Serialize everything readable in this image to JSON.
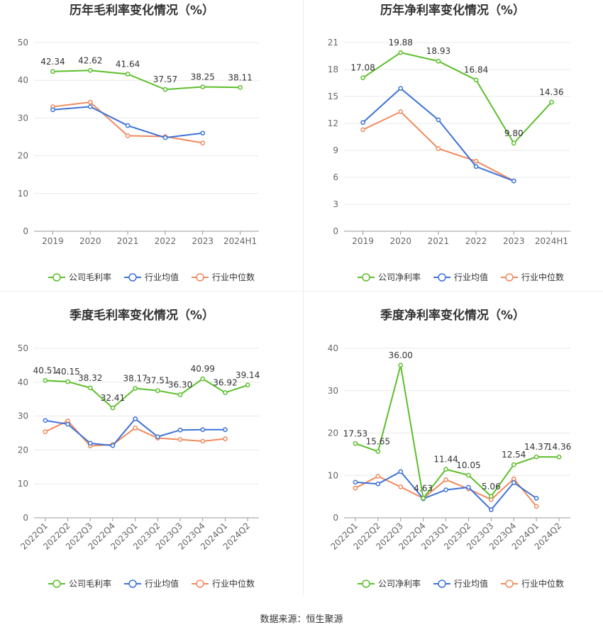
{
  "source_text": "数据来源：恒生聚源",
  "colors": {
    "company": "#5cbf2a",
    "avg": "#3d72d8",
    "median": "#f08a5d",
    "grid": "#e8e8e8",
    "axis": "#999999"
  },
  "chart_data": [
    {
      "type": "line",
      "title": "历年毛利率变化情况（%）",
      "categories": [
        "2019",
        "2020",
        "2021",
        "2022",
        "2023",
        "2024H1"
      ],
      "ylim": [
        0,
        50
      ],
      "yticks": [
        0,
        10,
        20,
        30,
        40,
        50
      ],
      "grid": true,
      "legend_position": "bottom",
      "x_label_rotate": false,
      "series": [
        {
          "name": "公司毛利率",
          "color": "#5cbf2a",
          "values": [
            42.34,
            42.62,
            41.64,
            37.57,
            38.25,
            38.11
          ],
          "labels": [
            "42.34",
            "42.62",
            "41.64",
            "37.57",
            "38.25",
            "38.11"
          ]
        },
        {
          "name": "行业均值",
          "color": "#3d72d8",
          "values": [
            32.2,
            33.0,
            28.0,
            24.8,
            26.0,
            null
          ]
        },
        {
          "name": "行业中位数",
          "color": "#f08a5d",
          "values": [
            33.0,
            34.2,
            25.3,
            25.1,
            23.4,
            null
          ]
        }
      ]
    },
    {
      "type": "line",
      "title": "历年净利率变化情况（%）",
      "categories": [
        "2019",
        "2020",
        "2021",
        "2022",
        "2023",
        "2024H1"
      ],
      "ylim": [
        0,
        21
      ],
      "yticks": [
        0,
        3,
        6,
        9,
        12,
        15,
        18,
        21
      ],
      "grid": true,
      "legend_position": "bottom",
      "x_label_rotate": false,
      "series": [
        {
          "name": "公司净利率",
          "color": "#5cbf2a",
          "values": [
            17.08,
            19.88,
            18.93,
            16.84,
            9.8,
            14.36
          ],
          "labels": [
            "17.08",
            "19.88",
            "18.93",
            "16.84",
            "9.80",
            "14.36"
          ]
        },
        {
          "name": "行业均值",
          "color": "#3d72d8",
          "values": [
            12.1,
            15.9,
            12.4,
            7.2,
            5.6,
            null
          ]
        },
        {
          "name": "行业中位数",
          "color": "#f08a5d",
          "values": [
            11.3,
            13.3,
            9.2,
            7.8,
            5.6,
            null
          ]
        }
      ]
    },
    {
      "type": "line",
      "title": "季度毛利率变化情况（%）",
      "categories": [
        "2022Q1",
        "2022Q2",
        "2022Q3",
        "2022Q4",
        "2023Q1",
        "2023Q2",
        "2023Q3",
        "2023Q4",
        "2024Q1",
        "2024Q2"
      ],
      "ylim": [
        0,
        50
      ],
      "yticks": [
        0,
        10,
        20,
        30,
        40,
        50
      ],
      "grid": true,
      "legend_position": "bottom",
      "x_label_rotate": true,
      "series": [
        {
          "name": "公司毛利率",
          "color": "#5cbf2a",
          "values": [
            40.51,
            40.15,
            38.32,
            32.41,
            38.17,
            37.51,
            36.3,
            40.99,
            36.92,
            39.14
          ],
          "labels": [
            "40.51",
            "40.15",
            "38.32",
            "32.41",
            "38.17",
            "37.51",
            "36.30",
            "40.99",
            "36.92",
            "39.14"
          ]
        },
        {
          "name": "行业均值",
          "color": "#3d72d8",
          "values": [
            28.7,
            27.6,
            22.0,
            21.3,
            29.2,
            23.9,
            25.9,
            26.0,
            26.0,
            null
          ]
        },
        {
          "name": "行业中位数",
          "color": "#f08a5d",
          "values": [
            25.4,
            28.6,
            21.2,
            21.6,
            26.5,
            23.5,
            23.1,
            22.6,
            23.3,
            null
          ]
        }
      ]
    },
    {
      "type": "line",
      "title": "季度净利率变化情况（%）",
      "categories": [
        "2022Q1",
        "2022Q2",
        "2022Q3",
        "2022Q4",
        "2023Q1",
        "2023Q2",
        "2023Q3",
        "2023Q4",
        "2024Q1",
        "2024Q2"
      ],
      "ylim": [
        0,
        40
      ],
      "yticks": [
        0,
        10,
        20,
        30,
        40
      ],
      "grid": true,
      "legend_position": "bottom",
      "x_label_rotate": true,
      "series": [
        {
          "name": "公司净利率",
          "color": "#5cbf2a",
          "values": [
            17.53,
            15.65,
            36.0,
            4.63,
            11.44,
            10.05,
            5.06,
            12.54,
            14.37,
            14.36
          ],
          "labels": [
            "17.53",
            "15.65",
            "36.00",
            "4.63",
            "11.44",
            "10.05",
            "5.06",
            "12.54",
            "14.37",
            "14.36"
          ]
        },
        {
          "name": "行业均值",
          "color": "#3d72d8",
          "values": [
            8.4,
            8.0,
            10.9,
            4.5,
            6.6,
            7.2,
            1.9,
            8.3,
            4.6,
            null
          ]
        },
        {
          "name": "行业中位数",
          "color": "#f08a5d",
          "values": [
            7.0,
            9.8,
            7.3,
            4.6,
            9.0,
            6.8,
            4.3,
            9.2,
            2.7,
            null
          ]
        }
      ]
    }
  ]
}
